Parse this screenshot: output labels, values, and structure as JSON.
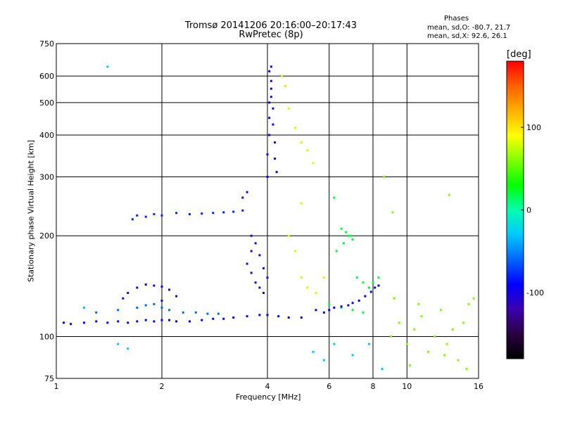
{
  "chart_data": {
    "type": "scatter",
    "title": "Tromsø 20141206 20:16:00–20:17:43",
    "subtitle": "RwPretec (8p)",
    "xlabel": "Frequency [MHz]",
    "ylabel": "Stationary phase Virtual Height [km]",
    "x_scale": "log",
    "y_scale": "log",
    "xlim": [
      1,
      16
    ],
    "ylim": [
      75,
      750
    ],
    "x_ticks": [
      1,
      2,
      4,
      6,
      8,
      10,
      16
    ],
    "x_tick_labels": [
      "1",
      "2",
      "4",
      "6",
      "8",
      "10",
      "16"
    ],
    "y_ticks": [
      75,
      100,
      200,
      300,
      400,
      500,
      600,
      750
    ],
    "y_tick_labels": [
      "75",
      "100",
      "200",
      "300",
      "400",
      "500",
      "600",
      "750"
    ],
    "grid": true,
    "phase_stats": {
      "header": "Phases",
      "line_o": "mean, sd,O: -80.7, 21.7",
      "line_x": "mean, sd,X:  92.6, 26.1"
    },
    "colorbar": {
      "label": "[deg]",
      "range": [
        -180,
        180
      ],
      "ticks": [
        100,
        0,
        -100
      ],
      "tick_labels": [
        "100",
        "0",
        "-100"
      ],
      "colors": [
        "#000000",
        "#2b0040",
        "#3a00b0",
        "#0000ff",
        "#0066ff",
        "#00c8ff",
        "#00ffb0",
        "#00ff00",
        "#80ff00",
        "#ffff00",
        "#ffb000",
        "#ff6000",
        "#ff0000"
      ]
    },
    "series": [
      {
        "description": "E/Es low trace ~105-115 km",
        "phase": -90,
        "points": [
          [
            1.05,
            110
          ],
          [
            1.1,
            109
          ],
          [
            1.2,
            110
          ],
          [
            1.3,
            111
          ],
          [
            1.4,
            110
          ],
          [
            1.5,
            111
          ],
          [
            1.6,
            110
          ],
          [
            1.7,
            111
          ],
          [
            1.8,
            112
          ],
          [
            1.9,
            111
          ],
          [
            2.0,
            112
          ],
          [
            2.1,
            112
          ],
          [
            2.2,
            111
          ],
          [
            2.4,
            111
          ],
          [
            2.6,
            112
          ],
          [
            2.8,
            113
          ],
          [
            3.0,
            113
          ],
          [
            3.2,
            114
          ],
          [
            3.5,
            115
          ],
          [
            3.8,
            116
          ],
          [
            4.0,
            116
          ],
          [
            4.3,
            115
          ],
          [
            4.6,
            114
          ],
          [
            5.0,
            114
          ]
        ]
      },
      {
        "description": "E trace ~115-125 km",
        "phase": -60,
        "points": [
          [
            1.3,
            118
          ],
          [
            1.5,
            120
          ],
          [
            1.7,
            122
          ],
          [
            1.8,
            124
          ],
          [
            1.9,
            125
          ],
          [
            2.0,
            122
          ],
          [
            2.1,
            120
          ],
          [
            2.3,
            118
          ],
          [
            2.5,
            118
          ],
          [
            2.7,
            117
          ],
          [
            2.9,
            117
          ]
        ]
      },
      {
        "description": "E echo cluster ~130-145 km",
        "phase": -100,
        "points": [
          [
            1.7,
            140
          ],
          [
            1.8,
            143
          ],
          [
            1.9,
            142
          ],
          [
            2.0,
            141
          ],
          [
            2.1,
            138
          ],
          [
            1.6,
            135
          ],
          [
            1.55,
            130
          ],
          [
            2.2,
            132
          ],
          [
            2.0,
            128
          ]
        ]
      },
      {
        "description": "F1 trace ~225-235 km",
        "phase": -80,
        "points": [
          [
            1.65,
            224
          ],
          [
            1.7,
            230
          ],
          [
            1.8,
            228
          ],
          [
            1.9,
            232
          ],
          [
            2.0,
            230
          ],
          [
            2.2,
            234
          ],
          [
            2.4,
            232
          ],
          [
            2.6,
            233
          ],
          [
            2.8,
            234
          ],
          [
            3.0,
            235
          ],
          [
            3.2,
            236
          ],
          [
            3.4,
            238
          ]
        ]
      },
      {
        "description": "F2 cusp near 3.5-4.0 MHz",
        "phase": -110,
        "points": [
          [
            3.4,
            260
          ],
          [
            3.5,
            270
          ],
          [
            3.6,
            200
          ],
          [
            3.6,
            180
          ],
          [
            3.5,
            165
          ],
          [
            3.6,
            155
          ],
          [
            3.7,
            145
          ],
          [
            3.8,
            140
          ],
          [
            3.9,
            135
          ],
          [
            3.7,
            190
          ],
          [
            3.8,
            175
          ],
          [
            3.9,
            160
          ],
          [
            4.0,
            150
          ]
        ]
      },
      {
        "description": "F2 vertical trace 4.0-4.2 MHz",
        "phase": -100,
        "points": [
          [
            4.0,
            300
          ],
          [
            4.0,
            350
          ],
          [
            4.05,
            400
          ],
          [
            4.05,
            450
          ],
          [
            4.05,
            500
          ],
          [
            4.1,
            520
          ],
          [
            4.1,
            550
          ],
          [
            4.1,
            580
          ],
          [
            4.05,
            620
          ],
          [
            4.1,
            640
          ],
          [
            4.15,
            480
          ],
          [
            4.15,
            430
          ],
          [
            4.2,
            380
          ],
          [
            4.2,
            340
          ],
          [
            4.25,
            310
          ]
        ]
      },
      {
        "description": "X-mode echoes 4.3-5.5 MHz",
        "phase": 80,
        "points": [
          [
            4.4,
            600
          ],
          [
            4.5,
            560
          ],
          [
            4.6,
            480
          ],
          [
            4.8,
            420
          ],
          [
            5.0,
            380
          ],
          [
            5.2,
            360
          ],
          [
            5.4,
            330
          ],
          [
            5.0,
            250
          ],
          [
            4.6,
            200
          ],
          [
            4.8,
            180
          ],
          [
            5.0,
            150
          ],
          [
            5.2,
            140
          ],
          [
            5.5,
            135
          ],
          [
            5.8,
            150
          ]
        ]
      },
      {
        "description": "Scattered echoes 6-8 MHz",
        "phase": 20,
        "points": [
          [
            6.2,
            260
          ],
          [
            6.5,
            210
          ],
          [
            6.7,
            205
          ],
          [
            6.8,
            200
          ],
          [
            7.0,
            195
          ],
          [
            6.6,
            190
          ],
          [
            6.9,
            200
          ],
          [
            6.3,
            180
          ],
          [
            7.2,
            150
          ],
          [
            7.5,
            145
          ],
          [
            7.8,
            140
          ],
          [
            8.0,
            145
          ],
          [
            8.3,
            150
          ],
          [
            6.0,
            125
          ],
          [
            6.5,
            122
          ],
          [
            7.0,
            120
          ],
          [
            7.5,
            118
          ]
        ]
      },
      {
        "description": "Low trace 6-8.5 MHz",
        "phase": -90,
        "points": [
          [
            5.5,
            120
          ],
          [
            5.8,
            118
          ],
          [
            6.0,
            120
          ],
          [
            6.2,
            122
          ],
          [
            6.5,
            123
          ],
          [
            6.8,
            124
          ],
          [
            7.0,
            126
          ],
          [
            7.3,
            128
          ],
          [
            7.6,
            132
          ],
          [
            7.9,
            136
          ],
          [
            8.1,
            140
          ],
          [
            8.3,
            142
          ]
        ]
      },
      {
        "description": "Noise scatter 8-16 MHz",
        "phase": 60,
        "points": [
          [
            9.0,
            100
          ],
          [
            9.5,
            110
          ],
          [
            10.0,
            95
          ],
          [
            10.5,
            105
          ],
          [
            11.0,
            115
          ],
          [
            11.5,
            90
          ],
          [
            12.0,
            100
          ],
          [
            12.5,
            120
          ],
          [
            13.0,
            95
          ],
          [
            13.5,
            105
          ],
          [
            14.0,
            85
          ],
          [
            14.5,
            110
          ],
          [
            15.0,
            125
          ],
          [
            15.5,
            130
          ],
          [
            9.2,
            130
          ],
          [
            10.8,
            125
          ],
          [
            12.8,
            88
          ],
          [
            8.6,
            300
          ],
          [
            9.1,
            235
          ],
          [
            13.2,
            265
          ],
          [
            14.8,
            80
          ],
          [
            10.2,
            82
          ]
        ]
      },
      {
        "description": "Isolated echoes",
        "phase": -30,
        "points": [
          [
            1.4,
            640
          ],
          [
            1.2,
            122
          ],
          [
            1.6,
            92
          ],
          [
            1.5,
            95
          ],
          [
            5.4,
            90
          ],
          [
            5.8,
            85
          ],
          [
            6.2,
            95
          ],
          [
            7.0,
            88
          ],
          [
            7.8,
            95
          ],
          [
            8.5,
            80
          ]
        ]
      }
    ]
  }
}
